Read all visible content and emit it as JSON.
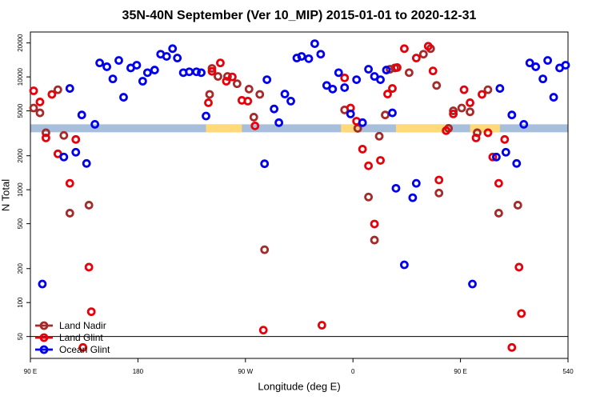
{
  "chart_data": {
    "type": "scatter",
    "title": "35N-40N September (Ver 10_MIP)   2015-01-01 to 2020-12-31",
    "x_label": "Longitude (deg E)",
    "y_label": "N Total",
    "xlim": [
      90,
      540
    ],
    "ylim": [
      32,
      25000
    ],
    "log_y": true,
    "xticks": [
      {
        "value": 90,
        "label": "90 E"
      },
      180,
      {
        "value": 270,
        "label": "90 W"
      },
      {
        "value": 360,
        "label": "0"
      },
      {
        "value": 450,
        "label": "90 E"
      },
      540
    ],
    "yticks": [
      50,
      100,
      200,
      500,
      1000,
      2000,
      5000,
      10000,
      20000
    ],
    "hline": 50,
    "legend": "bottom-left",
    "band": {
      "ylim": [
        3230,
        3800
      ],
      "color": "#a8bfdc",
      "segments": [
        {
          "x": [
            237,
            267
          ],
          "color": "#ffd97a"
        },
        {
          "x": [
            350,
            365
          ],
          "color": "#ffd97a"
        },
        {
          "x": [
            396,
            440
          ],
          "color": "#ffd97a"
        },
        {
          "x": [
            458,
            483
          ],
          "color": "#ffd97a"
        }
      ]
    },
    "series": [
      {
        "name": "Land Nadir",
        "color": "#a52a2a",
        "x": [
          92.7,
          98,
          103,
          113,
          118,
          123,
          139,
          240,
          242,
          247,
          255,
          263,
          273,
          277,
          282,
          286,
          353,
          364,
          373,
          378,
          382,
          387,
          391,
          395,
          407,
          419,
          425,
          430,
          432,
          440,
          444,
          451,
          458,
          464,
          473,
          482,
          498
        ],
        "values": [
          5300,
          4800,
          3200,
          7700,
          3030,
          620,
          730,
          7000,
          11900,
          10100,
          10100,
          8700,
          7800,
          4400,
          7000,
          294,
          5100,
          3500,
          862,
          358,
          2980,
          4600,
          11700,
          12000,
          10900,
          15900,
          17800,
          8400,
          935,
          3500,
          5000,
          5300,
          4900,
          3200,
          7700,
          620,
          730
        ]
      },
      {
        "name": "Land Glint",
        "color": "#e8000b",
        "x": [
          92.7,
          98,
          103,
          108,
          113,
          123,
          128,
          134,
          139,
          141,
          239,
          242,
          249,
          254,
          259,
          267,
          272,
          278,
          285,
          334,
          353,
          358,
          363,
          368,
          373,
          378,
          383,
          389,
          393,
          397,
          403,
          413,
          423,
          427,
          432,
          438,
          444,
          453,
          458,
          463,
          468,
          473,
          477,
          482,
          487,
          493,
          499,
          501
        ],
        "values": [
          7530,
          6000,
          2880,
          7000,
          2080,
          1140,
          2790,
          40,
          206,
          83,
          5900,
          11200,
          13300,
          9160,
          10000,
          6200,
          6100,
          3680,
          57,
          63,
          9800,
          5300,
          4050,
          2290,
          1630,
          497,
          1820,
          7050,
          7900,
          12100,
          17800,
          14700,
          18700,
          11300,
          1220,
          3340,
          4700,
          7700,
          5900,
          2880,
          7000,
          3200,
          1950,
          1140,
          2790,
          40,
          206,
          80
        ]
      },
      {
        "name": "Ocean Glint",
        "color": "#0000ee",
        "x": [
          100,
          118,
          123,
          128,
          133,
          137,
          144,
          148,
          154,
          159,
          164,
          168,
          174,
          179,
          184,
          188,
          194,
          199,
          204,
          209,
          213,
          218,
          223,
          229,
          233,
          237,
          286,
          288,
          294,
          298,
          303,
          308,
          313,
          317,
          323,
          328,
          333,
          338,
          343,
          348,
          353,
          358,
          363,
          368,
          373,
          378,
          383,
          388,
          393,
          396,
          403,
          410,
          413,
          460,
          480,
          483,
          488,
          493,
          497,
          503,
          508,
          513,
          519,
          523,
          528,
          533,
          538
        ],
        "values": [
          146,
          1950,
          7900,
          2150,
          4600,
          1710,
          3800,
          13300,
          12300,
          9600,
          14000,
          6600,
          12000,
          12700,
          9160,
          10900,
          11500,
          15900,
          15200,
          17800,
          14700,
          10900,
          11100,
          11100,
          10900,
          4500,
          1700,
          9450,
          5200,
          3930,
          7050,
          6100,
          14700,
          15200,
          14500,
          19700,
          15900,
          8400,
          7800,
          10900,
          8040,
          4700,
          9450,
          3930,
          11700,
          10100,
          9450,
          11500,
          4800,
          1030,
          216,
          850,
          1140,
          146,
          1950,
          7900,
          2150,
          4600,
          1710,
          3800,
          13300,
          12300,
          9600,
          14000,
          6600,
          12000,
          12700
        ]
      }
    ]
  }
}
